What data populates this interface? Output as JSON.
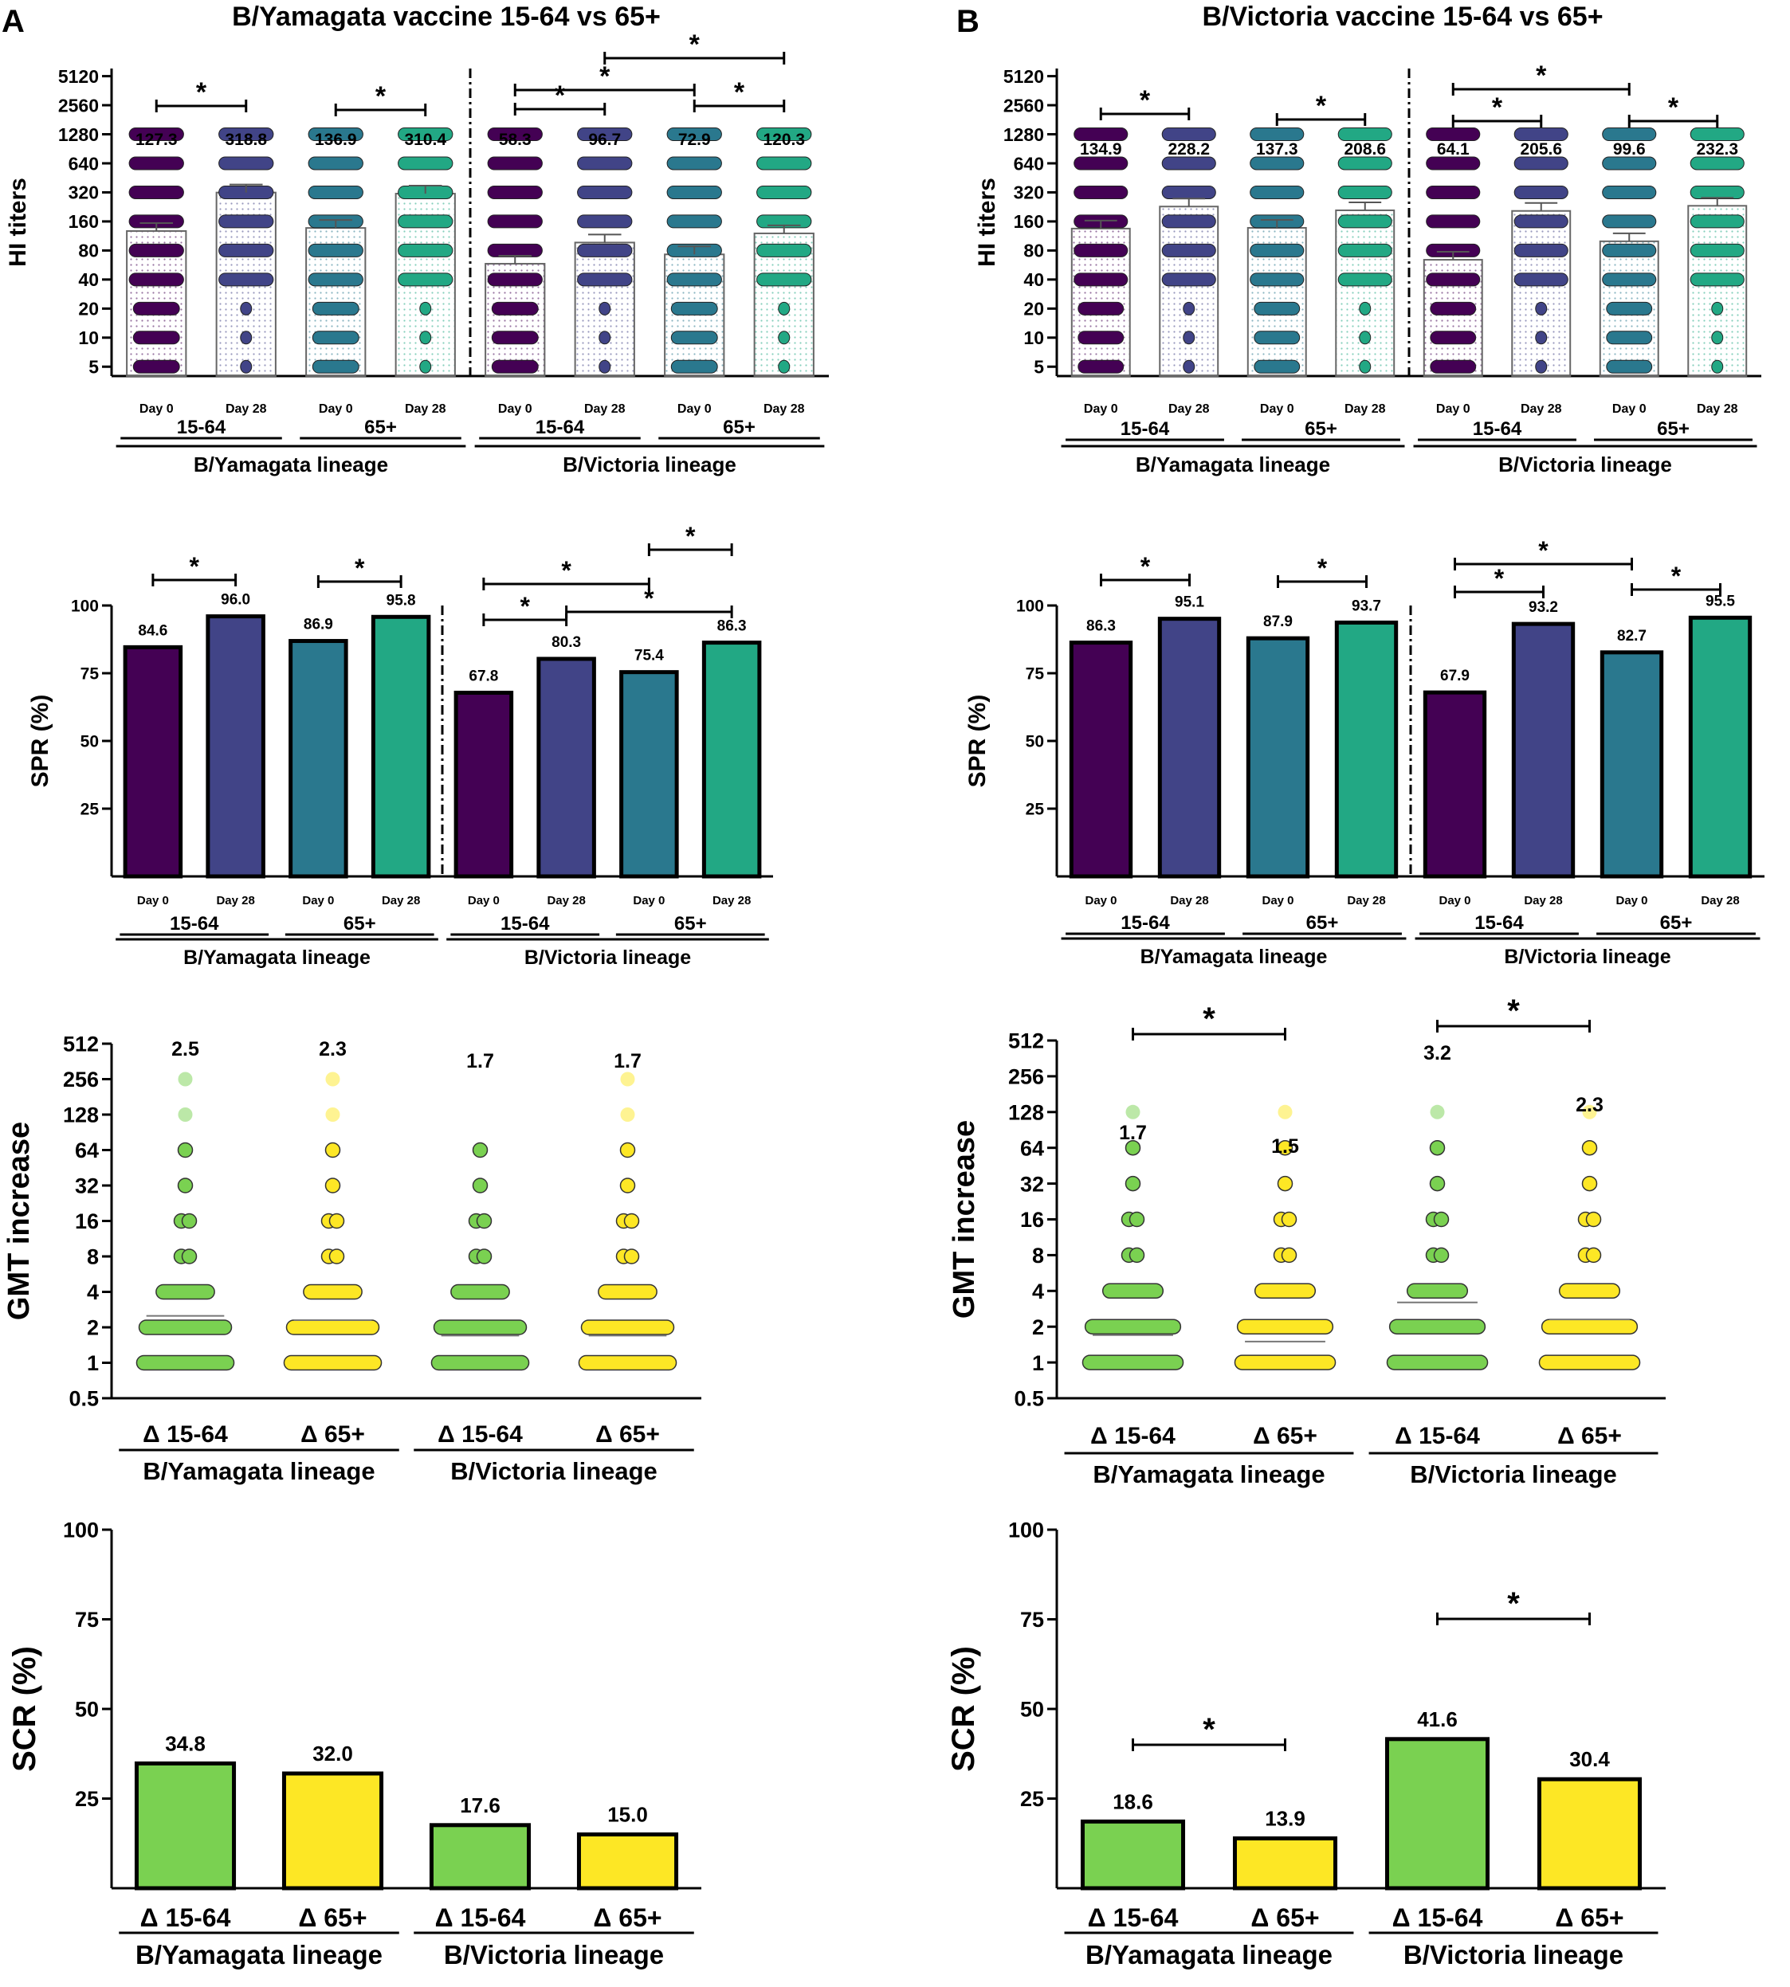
{
  "colors": {
    "d0_1564": "#440154",
    "d28_1564": "#414487",
    "d0_65": "#2a788e",
    "d28_65": "#22a884",
    "delta_1564": "#7ad151",
    "delta_65": "#fde725"
  },
  "panels": {
    "A": {
      "label": "A",
      "title": "B/Yamagata vaccine 15-64  vs 65+"
    },
    "B": {
      "label": "B",
      "title": "B/Victoria vaccine 15-64 vs 65+"
    }
  },
  "chart_data": [
    {
      "id": "A_hi",
      "type": "bar",
      "title": "B/Yamagata vaccine 15-64  vs 65+",
      "ylabel": "HI titers",
      "yscale": "log2",
      "yticks": [
        "5",
        "10",
        "20",
        "40",
        "80",
        "160",
        "320",
        "640",
        "1280",
        "2560",
        "5120"
      ],
      "ylim": [
        4,
        6144
      ],
      "categories": [
        "Day 0",
        "Day 28",
        "Day 0",
        "Day 28",
        "Day 0",
        "Day 28",
        "Day 0",
        "Day 28"
      ],
      "values": [
        127.3,
        318.8,
        136.9,
        310.4,
        58.3,
        96.7,
        72.9,
        120.3
      ],
      "value_labels": [
        "127.3",
        "318.8",
        "136.9",
        "310.4",
        "58.3",
        "96.7",
        "72.9",
        "120.3"
      ],
      "age_groups": [
        "15-64",
        "65+",
        "15-64",
        "65+"
      ],
      "lineages": [
        "B/Yamagata lineage",
        "B/Victoria lineage"
      ],
      "significance": [
        {
          "from": 0,
          "to": 1,
          "label": "*"
        },
        {
          "from": 2,
          "to": 3,
          "label": "*"
        },
        {
          "from": 4,
          "to": 5,
          "label": "*"
        },
        {
          "from": 4,
          "to": 6,
          "label": "*"
        },
        {
          "from": 6,
          "to": 7,
          "label": "*"
        },
        {
          "from": 5,
          "to": 7,
          "label": "*"
        }
      ]
    },
    {
      "id": "B_hi",
      "type": "bar",
      "title": "B/Victoria vaccine 15-64 vs 65+",
      "ylabel": "HI titers",
      "yscale": "log2",
      "yticks": [
        "5",
        "10",
        "20",
        "40",
        "80",
        "160",
        "320",
        "640",
        "1280",
        "2560",
        "5120"
      ],
      "ylim": [
        4,
        6144
      ],
      "categories": [
        "Day 0",
        "Day 28",
        "Day 0",
        "Day 28",
        "Day 0",
        "Day 28",
        "Day 0",
        "Day 28"
      ],
      "values": [
        134.9,
        228.2,
        137.3,
        208.6,
        64.1,
        205.6,
        99.6,
        232.3
      ],
      "value_labels": [
        "134.9",
        "228.2",
        "137.3",
        "208.6",
        "64.1",
        "205.6",
        "99.6",
        "232.3"
      ],
      "age_groups": [
        "15-64",
        "65+",
        "15-64",
        "65+"
      ],
      "lineages": [
        "B/Yamagata lineage",
        "B/Victoria lineage"
      ],
      "significance": [
        {
          "from": 0,
          "to": 1,
          "label": "*"
        },
        {
          "from": 2,
          "to": 3,
          "label": "*"
        },
        {
          "from": 4,
          "to": 5,
          "label": "*"
        },
        {
          "from": 4,
          "to": 6,
          "label": "*"
        },
        {
          "from": 6,
          "to": 7,
          "label": "*"
        }
      ]
    },
    {
      "id": "A_spr",
      "type": "bar",
      "ylabel": "SPR (%)",
      "yticks": [
        "25",
        "50",
        "75",
        "100"
      ],
      "ylim": [
        0,
        100
      ],
      "categories": [
        "Day 0",
        "Day 28",
        "Day 0",
        "Day 28",
        "Day 0",
        "Day 28",
        "Day 0",
        "Day 28"
      ],
      "values": [
        84.6,
        96.0,
        86.9,
        95.8,
        67.8,
        80.3,
        75.4,
        86.3
      ],
      "value_labels": [
        "84.6",
        "96.0",
        "86.9",
        "95.8",
        "67.8",
        "80.3",
        "75.4",
        "86.3"
      ],
      "age_groups": [
        "15-64",
        "65+",
        "15-64",
        "65+"
      ],
      "lineages": [
        "B/Yamagata lineage",
        "B/Victoria lineage"
      ],
      "significance": [
        {
          "from": 0,
          "to": 1,
          "label": "*"
        },
        {
          "from": 2,
          "to": 3,
          "label": "*"
        },
        {
          "from": 4,
          "to": 5,
          "label": "*"
        },
        {
          "from": 4,
          "to": 6,
          "label": "*"
        },
        {
          "from": 5,
          "to": 7,
          "label": "*"
        },
        {
          "from": 6,
          "to": 7,
          "label": "*"
        }
      ]
    },
    {
      "id": "B_spr",
      "type": "bar",
      "ylabel": "SPR (%)",
      "yticks": [
        "25",
        "50",
        "75",
        "100"
      ],
      "ylim": [
        0,
        100
      ],
      "categories": [
        "Day 0",
        "Day 28",
        "Day 0",
        "Day 28",
        "Day 0",
        "Day 28",
        "Day 0",
        "Day 28"
      ],
      "values": [
        86.3,
        95.1,
        87.9,
        93.7,
        67.9,
        93.2,
        82.7,
        95.5
      ],
      "value_labels": [
        "86.3",
        "95.1",
        "87.9",
        "93.7",
        "67.9",
        "93.2",
        "82.7",
        "95.5"
      ],
      "age_groups": [
        "15-64",
        "65+",
        "15-64",
        "65+"
      ],
      "lineages": [
        "B/Yamagata lineage",
        "B/Victoria lineage"
      ],
      "significance": [
        {
          "from": 0,
          "to": 1,
          "label": "*"
        },
        {
          "from": 2,
          "to": 3,
          "label": "*"
        },
        {
          "from": 4,
          "to": 5,
          "label": "*"
        },
        {
          "from": 4,
          "to": 6,
          "label": "*"
        },
        {
          "from": 6,
          "to": 7,
          "label": "*"
        }
      ]
    },
    {
      "id": "A_gmt",
      "type": "scatter",
      "ylabel": "GMT increase",
      "yscale": "log2",
      "yticks": [
        "0.5",
        "1",
        "2",
        "4",
        "8",
        "16",
        "32",
        "64",
        "128",
        "256",
        "512"
      ],
      "ylim": [
        0.5,
        512
      ],
      "categories": [
        "Δ 15-64",
        "Δ 65+",
        "Δ 15-64",
        "Δ 65+"
      ],
      "values": [
        2.5,
        2.3,
        1.7,
        1.7
      ],
      "value_labels": [
        "2.5",
        "2.3",
        "1.7",
        "1.7"
      ],
      "max_levels": [
        256,
        256,
        64,
        256
      ],
      "lineages": [
        "B/Yamagata lineage",
        "B/Victoria lineage"
      ],
      "significance": []
    },
    {
      "id": "B_gmt",
      "type": "scatter",
      "ylabel": "GMT increase",
      "yscale": "log2",
      "yticks": [
        "0.5",
        "1",
        "2",
        "4",
        "8",
        "16",
        "32",
        "64",
        "128",
        "256",
        "512"
      ],
      "ylim": [
        0.5,
        512
      ],
      "categories": [
        "Δ 15-64",
        "Δ 65+",
        "Δ 15-64",
        "Δ 65+"
      ],
      "values": [
        1.7,
        1.5,
        3.2,
        2.3
      ],
      "value_labels": [
        "1.7",
        "1.5",
        "3.2",
        "2.3"
      ],
      "max_levels": [
        128,
        128,
        128,
        128
      ],
      "lineages": [
        "B/Yamagata lineage",
        "B/Victoria lineage"
      ],
      "significance": [
        {
          "from": 0,
          "to": 1,
          "label": "*"
        },
        {
          "from": 2,
          "to": 3,
          "label": "*"
        }
      ]
    },
    {
      "id": "A_scr",
      "type": "bar",
      "ylabel": "SCR (%)",
      "yticks": [
        "25",
        "50",
        "75",
        "100"
      ],
      "ylim": [
        0,
        100
      ],
      "categories": [
        "Δ 15-64",
        "Δ 65+",
        "Δ 15-64",
        "Δ 65+"
      ],
      "values": [
        34.8,
        32.0,
        17.6,
        15.0
      ],
      "value_labels": [
        "34.8",
        "32.0",
        "17.6",
        "15.0"
      ],
      "lineages": [
        "B/Yamagata lineage",
        "B/Victoria lineage"
      ],
      "significance": []
    },
    {
      "id": "B_scr",
      "type": "bar",
      "ylabel": "SCR (%)",
      "yticks": [
        "25",
        "50",
        "75",
        "100"
      ],
      "ylim": [
        0,
        100
      ],
      "categories": [
        "Δ 15-64",
        "Δ 65+",
        "Δ 15-64",
        "Δ 65+"
      ],
      "values": [
        18.6,
        13.9,
        41.6,
        30.4
      ],
      "value_labels": [
        "18.6",
        "13.9",
        "41.6",
        "30.4"
      ],
      "lineages": [
        "B/Yamagata lineage",
        "B/Victoria lineage"
      ],
      "significance": [
        {
          "from": 0,
          "to": 1,
          "label": "*"
        },
        {
          "from": 2,
          "to": 3,
          "label": "*"
        }
      ]
    }
  ]
}
